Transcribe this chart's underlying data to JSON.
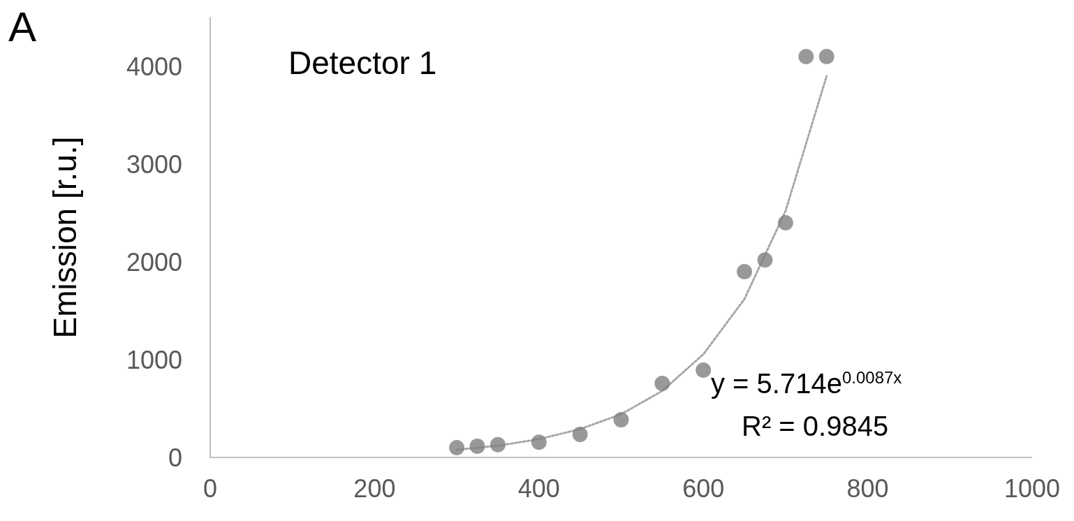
{
  "chart_data": {
    "type": "scatter",
    "title": "Detector 1",
    "ylabel": "Emission [r.u.]",
    "annotations": [
      "A",
      "y = 5.714e$^{0.0087x}$",
      "R² = 0.9845"
    ],
    "xlim": [
      0,
      1000
    ],
    "xticks": [
      0,
      200,
      400,
      600,
      800,
      1000
    ],
    "ylim": [
      0,
      4500
    ],
    "yticks": [
      0,
      1000,
      2000,
      3000,
      4000
    ],
    "grid": false,
    "marker": "circle",
    "series": [
      {
        "color": "#808080",
        "x": [
          300,
          325,
          350,
          400,
          450,
          500,
          550,
          600,
          650,
          675,
          700,
          725,
          750
        ],
        "values": [
          100,
          115,
          130,
          155,
          235,
          385,
          757,
          893,
          1900,
          2020,
          2400,
          4100,
          4100
        ]
      },
      {
        "type": "line",
        "line_style": "dotted",
        "marker": "none",
        "color": "#a6a6a6",
        "x": [
          300,
          350,
          400,
          450,
          500,
          550,
          600,
          650,
          700,
          750
        ],
        "values": [
          78,
          120,
          187,
          290,
          442,
          680,
          1055,
          1620,
          2520,
          3900
        ]
      }
    ]
  }
}
